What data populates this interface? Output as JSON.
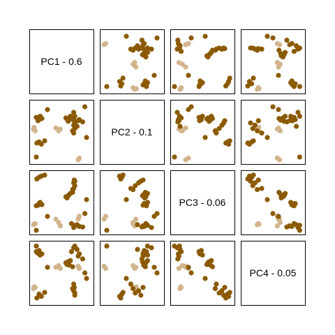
{
  "chart_data": {
    "type": "scatter-matrix",
    "variables": [
      "PC1",
      "PC2",
      "PC3",
      "PC4"
    ],
    "diagonal_labels": [
      "PC1 - 0.6",
      "PC2 - 0.1",
      "PC3 - 0.06",
      "PC4 - 0.05"
    ],
    "variance_explained": [
      0.6,
      0.1,
      0.06,
      0.05
    ],
    "grid": false,
    "axes_ticks": false,
    "colors": {
      "dark_group": "#8B5A00",
      "light_group": "#D2B48C",
      "frame": "#000000",
      "background": "#ffffff"
    },
    "points": [
      {
        "group": "light",
        "v": [
          0.0,
          0.55,
          0.1,
          0.22
        ]
      },
      {
        "group": "light",
        "v": [
          0.03,
          0.52,
          0.12,
          0.24
        ]
      },
      {
        "group": "light",
        "v": [
          0.01,
          0.58,
          0.11,
          0.25
        ]
      },
      {
        "group": "light",
        "v": [
          0.45,
          0.52,
          0.14,
          0.63
        ]
      },
      {
        "group": "light",
        "v": [
          0.4,
          0.57,
          0.2,
          0.6
        ]
      },
      {
        "group": "light",
        "v": [
          0.48,
          0.55,
          0.08,
          0.58
        ]
      },
      {
        "group": "light",
        "v": [
          0.8,
          0.0,
          0.2,
          0.62
        ]
      },
      {
        "group": "light",
        "v": [
          0.82,
          0.03,
          0.25,
          0.58
        ]
      },
      {
        "group": "dark",
        "v": [
          0.72,
          0.85,
          0.05,
          0.95
        ]
      },
      {
        "group": "dark",
        "v": [
          0.74,
          0.78,
          0.09,
          0.98
        ]
      },
      {
        "group": "dark",
        "v": [
          0.8,
          0.7,
          0.08,
          0.8
        ]
      },
      {
        "group": "dark",
        "v": [
          0.68,
          0.75,
          0.12,
          0.88
        ]
      },
      {
        "group": "dark",
        "v": [
          0.82,
          0.72,
          0.07,
          0.84
        ]
      },
      {
        "group": "dark",
        "v": [
          0.88,
          0.68,
          0.06,
          0.75
        ]
      },
      {
        "group": "dark",
        "v": [
          0.78,
          0.6,
          0.1,
          0.92
        ]
      },
      {
        "group": "dark",
        "v": [
          0.08,
          0.7,
          0.45,
          0.85
        ]
      },
      {
        "group": "dark",
        "v": [
          0.05,
          0.76,
          0.44,
          0.88
        ]
      },
      {
        "group": "dark",
        "v": [
          0.1,
          0.72,
          0.48,
          0.9
        ]
      },
      {
        "group": "dark",
        "v": [
          0.12,
          0.78,
          0.5,
          0.82
        ]
      },
      {
        "group": "dark",
        "v": [
          0.15,
          0.74,
          0.46,
          0.84
        ]
      },
      {
        "group": "dark",
        "v": [
          0.58,
          0.75,
          0.6,
          0.68
        ]
      },
      {
        "group": "dark",
        "v": [
          0.6,
          0.73,
          0.58,
          0.65
        ]
      },
      {
        "group": "dark",
        "v": [
          0.62,
          0.69,
          0.62,
          0.7
        ]
      },
      {
        "group": "dark",
        "v": [
          0.64,
          0.71,
          0.64,
          0.64
        ]
      },
      {
        "group": "dark",
        "v": [
          0.66,
          0.78,
          0.66,
          0.72
        ]
      },
      {
        "group": "dark",
        "v": [
          0.7,
          0.74,
          0.68,
          0.61
        ]
      },
      {
        "group": "dark",
        "v": [
          0.72,
          0.48,
          0.75,
          0.3
        ]
      },
      {
        "group": "dark",
        "v": [
          0.7,
          0.52,
          0.73,
          0.22
        ]
      },
      {
        "group": "dark",
        "v": [
          0.74,
          0.56,
          0.8,
          0.14
        ]
      },
      {
        "group": "dark",
        "v": [
          0.72,
          0.62,
          0.85,
          0.18
        ]
      },
      {
        "group": "dark",
        "v": [
          0.74,
          0.66,
          0.88,
          0.1
        ]
      },
      {
        "group": "dark",
        "v": [
          0.73,
          0.7,
          0.9,
          0.24
        ]
      },
      {
        "group": "dark",
        "v": [
          0.06,
          0.3,
          0.92,
          0.05
        ]
      },
      {
        "group": "dark",
        "v": [
          0.1,
          0.32,
          0.95,
          0.12
        ]
      },
      {
        "group": "dark",
        "v": [
          0.14,
          0.28,
          0.97,
          0.08
        ]
      },
      {
        "group": "dark",
        "v": [
          0.2,
          0.34,
          0.99,
          0.15
        ]
      },
      {
        "group": "dark",
        "v": [
          0.05,
          0.05,
          0.0,
          0.98
        ]
      },
      {
        "group": "dark",
        "v": [
          0.25,
          0.9,
          0.25,
          0.6
        ]
      },
      {
        "group": "dark",
        "v": [
          0.92,
          0.95,
          0.3,
          0.5
        ]
      },
      {
        "group": "dark",
        "v": [
          0.95,
          0.4,
          0.55,
          0.4
        ]
      }
    ]
  }
}
